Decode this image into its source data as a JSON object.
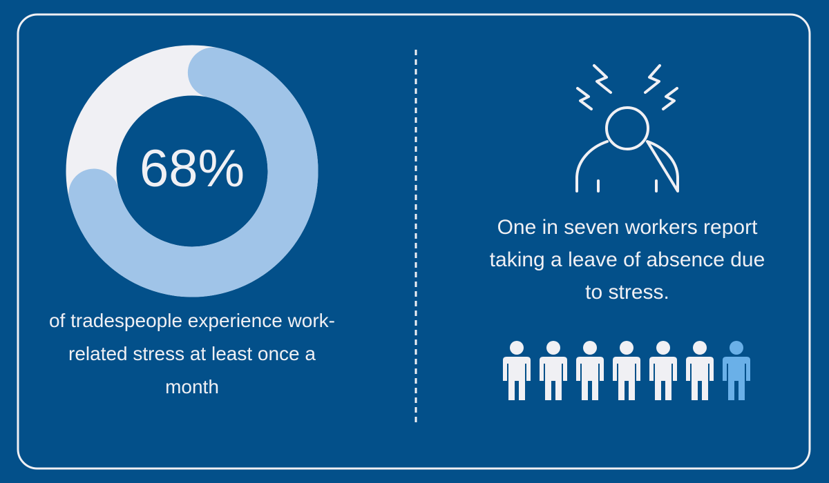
{
  "left": {
    "type": "donut",
    "values": [
      68
    ],
    "value_labels": [
      "68%"
    ],
    "caption": "of tradespeople experience work-related stress at least once a month"
  },
  "right": {
    "caption": "One in seven workers report taking a leave of absence due to stress."
  }
}
